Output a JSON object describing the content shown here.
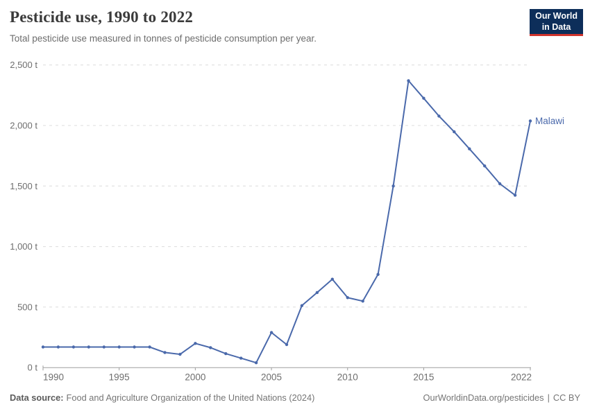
{
  "header": {
    "title": "Pesticide use, 1990 to 2022",
    "subtitle": "Total pesticide use measured in tonnes of pesticide consumption per year.",
    "logo": {
      "line1": "Our World",
      "line2": "in Data"
    }
  },
  "footer": {
    "source_label": "Data source:",
    "source_text": "Food and Agriculture Organization of the United Nations (2024)",
    "link_text": "OurWorldinData.org/pesticides",
    "separator": "|",
    "license": "CC BY"
  },
  "colors": {
    "line": "#4a69ab",
    "grid": "#dcdcdc",
    "axis": "#9e9e9e",
    "tick_text": "#6e6e6e",
    "logo_bg": "#0d2e5a",
    "logo_red": "#d0342c"
  },
  "chart_data": {
    "type": "line",
    "title": "Pesticide use, 1990 to 2022",
    "unit": "t",
    "entity_label": "Malawi",
    "x": [
      1990,
      1991,
      1992,
      1993,
      1994,
      1995,
      1996,
      1997,
      1998,
      1999,
      2000,
      2001,
      2002,
      2003,
      2004,
      2005,
      2006,
      2007,
      2008,
      2009,
      2010,
      2011,
      2012,
      2013,
      2014,
      2015,
      2016,
      2017,
      2018,
      2019,
      2020,
      2021,
      2022
    ],
    "series": [
      {
        "name": "Malawi",
        "color": "#4a69ab",
        "values": [
          170,
          170,
          170,
          170,
          170,
          170,
          170,
          170,
          125,
          110,
          200,
          165,
          115,
          78,
          40,
          290,
          190,
          512,
          620,
          730,
          578,
          549,
          770,
          1500,
          2370,
          2225,
          2078,
          1948,
          1807,
          1666,
          1519,
          1424,
          2038
        ]
      }
    ],
    "xlabel": "",
    "ylabel": "",
    "ylim": [
      0,
      2500
    ],
    "yticks": [
      0,
      500,
      1000,
      1500,
      2000,
      2500
    ],
    "ytick_suffix": " t",
    "xticks": [
      1990,
      1995,
      2000,
      2005,
      2010,
      2015,
      2022
    ],
    "grid": "horizontal-dashed",
    "legend_position": "end-of-line"
  }
}
